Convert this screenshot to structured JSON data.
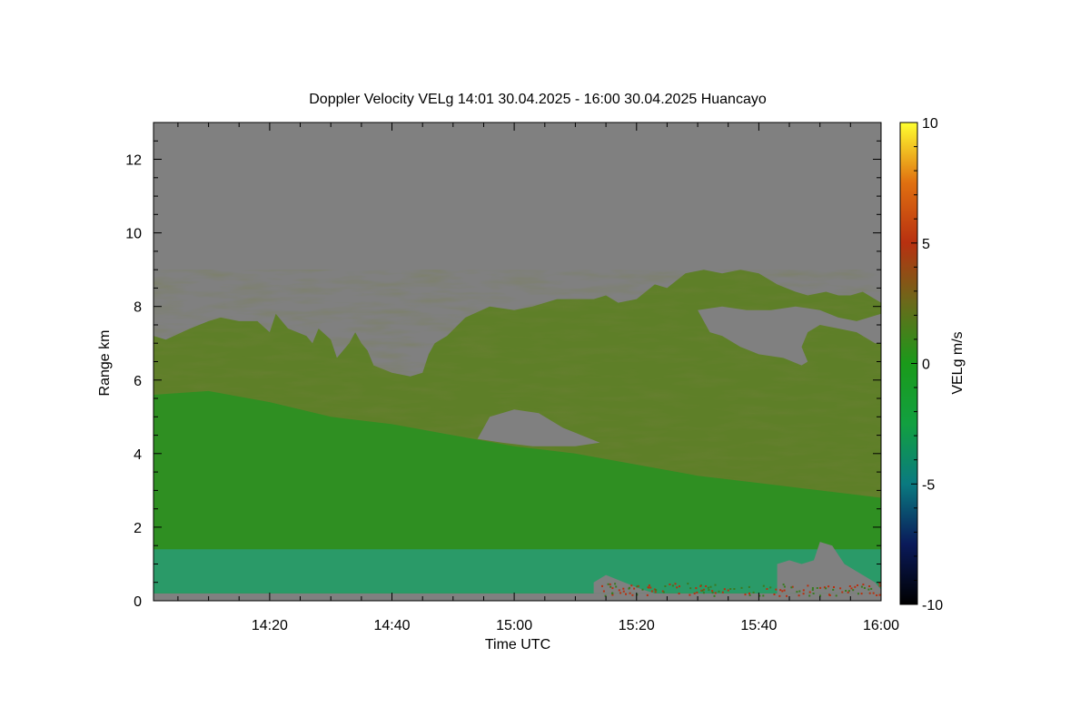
{
  "chart_data": {
    "type": "heatmap",
    "title": "Doppler Velocity VELg   14:01 30.04.2025 - 16:00 30.04.2025 Huancayo",
    "xlabel": "Time UTC",
    "ylabel": "Range km",
    "x_tick_labels": [
      "14:20",
      "14:40",
      "15:00",
      "15:20",
      "15:40",
      "16:00"
    ],
    "x_ticks_minutes": [
      20,
      40,
      60,
      80,
      100,
      120
    ],
    "xlim_minutes": [
      1,
      120
    ],
    "y_ticks": [
      0,
      2,
      4,
      6,
      8,
      10,
      12
    ],
    "ylim": [
      0,
      13
    ],
    "colorbar": {
      "label": "VELg m/s",
      "ticks": [
        10,
        5,
        0,
        -5,
        -10
      ],
      "range": [
        -10,
        10
      ],
      "colors": [
        "#000000",
        "#0a1a5a",
        "#0a7a80",
        "#12a040",
        "#1a9a1a",
        "#6a6a1a",
        "#b83010",
        "#e07010",
        "#ffff30"
      ]
    },
    "colors": {
      "no_signal": "#808080",
      "main_green": "#2f8f22",
      "olive": "#5e7f28",
      "near_surface_teal": "#2a9a68",
      "frame": "#000000"
    },
    "regions": [
      {
        "name": "echo-main",
        "fill": "olive",
        "outline": [
          [
            1,
            0.2
          ],
          [
            1,
            7.2
          ],
          [
            3,
            7.1
          ],
          [
            7,
            7.4
          ],
          [
            10,
            7.6
          ],
          [
            12,
            7.7
          ],
          [
            15,
            7.6
          ],
          [
            18,
            7.6
          ],
          [
            20,
            7.3
          ],
          [
            21,
            7.8
          ],
          [
            23,
            7.4
          ],
          [
            26,
            7.2
          ],
          [
            27,
            7.0
          ],
          [
            28,
            7.4
          ],
          [
            30,
            7.1
          ],
          [
            31,
            6.6
          ],
          [
            33,
            7.0
          ],
          [
            34,
            7.3
          ],
          [
            35,
            7.0
          ],
          [
            36,
            6.8
          ],
          [
            37,
            6.4
          ],
          [
            40,
            6.2
          ],
          [
            43,
            6.1
          ],
          [
            45,
            6.2
          ],
          [
            46,
            6.7
          ],
          [
            47,
            7.0
          ],
          [
            49,
            7.2
          ],
          [
            52,
            7.7
          ],
          [
            56,
            8.0
          ],
          [
            60,
            7.9
          ],
          [
            63,
            8.0
          ],
          [
            67,
            8.2
          ],
          [
            70,
            8.2
          ],
          [
            73,
            8.2
          ],
          [
            75,
            8.3
          ],
          [
            77,
            8.1
          ],
          [
            80,
            8.2
          ],
          [
            83,
            8.6
          ],
          [
            85,
            8.5
          ],
          [
            88,
            8.9
          ],
          [
            91,
            9.0
          ],
          [
            94,
            8.9
          ],
          [
            97,
            9.0
          ],
          [
            100,
            8.9
          ],
          [
            103,
            8.6
          ],
          [
            106,
            8.4
          ],
          [
            108,
            8.3
          ],
          [
            111,
            8.4
          ],
          [
            113,
            8.3
          ],
          [
            115,
            8.3
          ],
          [
            117,
            8.4
          ],
          [
            119,
            8.2
          ],
          [
            120,
            8.1
          ],
          [
            120,
            0.2
          ]
        ]
      },
      {
        "name": "echo-low",
        "fill": "main_green",
        "outline": [
          [
            1,
            0.2
          ],
          [
            1,
            5.6
          ],
          [
            10,
            5.7
          ],
          [
            20,
            5.4
          ],
          [
            30,
            5.0
          ],
          [
            40,
            4.8
          ],
          [
            50,
            4.5
          ],
          [
            60,
            4.2
          ],
          [
            70,
            4.0
          ],
          [
            80,
            3.7
          ],
          [
            90,
            3.4
          ],
          [
            100,
            3.2
          ],
          [
            110,
            3.0
          ],
          [
            120,
            2.8
          ],
          [
            120,
            0.2
          ]
        ]
      },
      {
        "name": "near-surface-layer",
        "fill": "near_surface_teal",
        "outline": [
          [
            1,
            0.2
          ],
          [
            1,
            1.4
          ],
          [
            120,
            1.4
          ],
          [
            120,
            0.2
          ]
        ]
      },
      {
        "name": "gap-cloud-hole",
        "fill": "no_signal",
        "outline": [
          [
            54,
            4.4
          ],
          [
            56,
            5.0
          ],
          [
            60,
            5.2
          ],
          [
            64,
            5.1
          ],
          [
            68,
            4.7
          ],
          [
            71,
            4.5
          ],
          [
            74,
            4.3
          ],
          [
            70,
            4.2
          ],
          [
            63,
            4.2
          ],
          [
            58,
            4.3
          ]
        ]
      },
      {
        "name": "gap-upper-right",
        "fill": "no_signal",
        "outline": [
          [
            90,
            7.9
          ],
          [
            92,
            7.3
          ],
          [
            94,
            7.2
          ],
          [
            97,
            6.9
          ],
          [
            100,
            6.7
          ],
          [
            104,
            6.6
          ],
          [
            107,
            6.4
          ],
          [
            108,
            6.5
          ],
          [
            107,
            6.9
          ],
          [
            108,
            7.3
          ],
          [
            110,
            7.5
          ],
          [
            113,
            7.4
          ],
          [
            116,
            7.3
          ],
          [
            119,
            7.0
          ],
          [
            120,
            7.0
          ],
          [
            120,
            7.8
          ],
          [
            116,
            7.6
          ],
          [
            113,
            7.7
          ],
          [
            110,
            7.9
          ],
          [
            106,
            8.0
          ],
          [
            102,
            7.9
          ],
          [
            98,
            7.9
          ],
          [
            94,
            8.0
          ]
        ]
      },
      {
        "name": "gap-lower-right",
        "fill": "no_signal",
        "outline": [
          [
            103,
            0.2
          ],
          [
            103,
            1.0
          ],
          [
            105,
            1.1
          ],
          [
            107,
            1.0
          ],
          [
            109,
            1.1
          ],
          [
            110,
            1.6
          ],
          [
            112,
            1.5
          ],
          [
            114,
            1.0
          ],
          [
            117,
            0.7
          ],
          [
            119,
            0.5
          ],
          [
            120,
            0.3
          ],
          [
            120,
            0.2
          ]
        ]
      },
      {
        "name": "gap-lower-middle",
        "fill": "no_signal",
        "outline": [
          [
            73,
            0.2
          ],
          [
            73,
            0.5
          ],
          [
            75,
            0.7
          ],
          [
            78,
            0.5
          ],
          [
            81,
            0.3
          ],
          [
            83,
            0.2
          ]
        ]
      }
    ]
  }
}
